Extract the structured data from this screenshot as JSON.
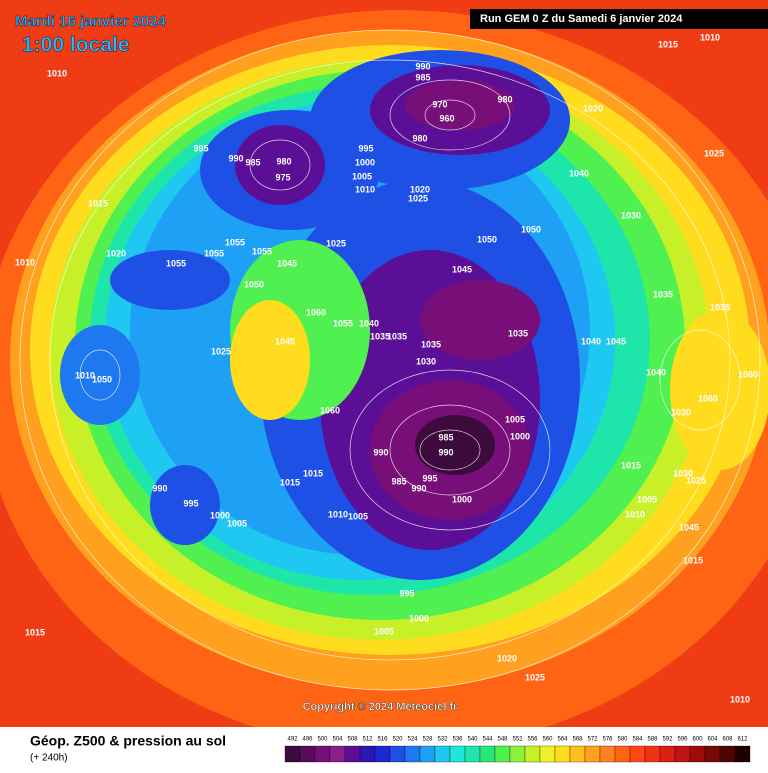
{
  "header": {
    "date": "Mardi 16 janvier 2024",
    "time": "1:00 locale",
    "run": "Run GEM 0 Z du Samedi 6 janvier 2024"
  },
  "copyright": "Copyright © 2024 Meteociel.fr",
  "footer": {
    "title": "Géop. Z500 & pression au sol",
    "subtitle": "(+ 240h)"
  },
  "legend": {
    "values": [
      492,
      496,
      500,
      504,
      508,
      512,
      516,
      520,
      524,
      528,
      532,
      536,
      540,
      544,
      548,
      552,
      556,
      560,
      564,
      568,
      572,
      576,
      580,
      584,
      588,
      592,
      596,
      600,
      604,
      608,
      612
    ],
    "colors": [
      "#3c0a3c",
      "#5a0a5a",
      "#780f78",
      "#8c1e8c",
      "#5a0f96",
      "#2d14b4",
      "#1e28d2",
      "#1e50e6",
      "#1e78f0",
      "#1ea0f5",
      "#1ec8f0",
      "#1ee6dc",
      "#1ee6aa",
      "#28e678",
      "#50f050",
      "#8cf03c",
      "#c8f028",
      "#f0f028",
      "#ffdc1e",
      "#ffbe1e",
      "#ffa01e",
      "#ff821e",
      "#ff6414",
      "#ff4614",
      "#f03214",
      "#dc1e14",
      "#be1414",
      "#a00a0a",
      "#780a0a",
      "#500505",
      "#1e0000"
    ]
  },
  "isobars": {
    "labels": [
      1010,
      1015,
      1010,
      990,
      985,
      980,
      970,
      960,
      980,
      1020,
      995,
      990,
      985,
      980,
      975,
      995,
      1000,
      1005,
      1010,
      1020,
      1025,
      1040,
      1025,
      1015,
      1030,
      1020,
      1055,
      1055,
      1055,
      1055,
      1045,
      1025,
      1050,
      1050,
      1045,
      1010,
      1050,
      1035,
      1060,
      1055,
      1040,
      1035,
      1035,
      1035,
      1035,
      1045,
      1025,
      1030,
      1040,
      1045,
      1035,
      1040,
      1060,
      1010,
      1050,
      1060,
      1030,
      1060,
      1005,
      1000,
      985,
      990,
      990,
      985,
      995,
      990,
      1000,
      1015,
      1015,
      1015,
      1030,
      1025,
      990,
      995,
      1005,
      1010,
      1000,
      1005,
      1010,
      1005,
      1045,
      1015,
      995,
      1000,
      1005,
      1015,
      1020,
      1025,
      1010
    ]
  }
}
